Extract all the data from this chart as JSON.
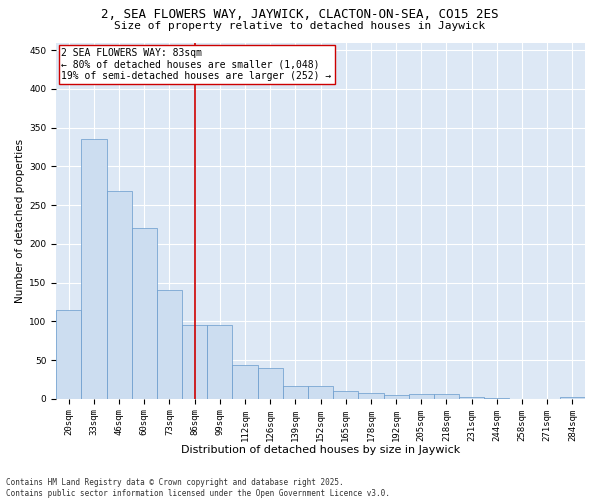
{
  "title": "2, SEA FLOWERS WAY, JAYWICK, CLACTON-ON-SEA, CO15 2ES",
  "subtitle": "Size of property relative to detached houses in Jaywick",
  "xlabel": "Distribution of detached houses by size in Jaywick",
  "ylabel": "Number of detached properties",
  "categories": [
    "20sqm",
    "33sqm",
    "46sqm",
    "60sqm",
    "73sqm",
    "86sqm",
    "99sqm",
    "112sqm",
    "126sqm",
    "139sqm",
    "152sqm",
    "165sqm",
    "178sqm",
    "192sqm",
    "205sqm",
    "218sqm",
    "231sqm",
    "244sqm",
    "258sqm",
    "271sqm",
    "284sqm"
  ],
  "values": [
    115,
    335,
    268,
    221,
    140,
    95,
    95,
    44,
    40,
    17,
    17,
    10,
    7,
    5,
    6,
    6,
    3,
    1,
    0,
    0,
    3
  ],
  "bar_color": "#ccddf0",
  "bar_edge_color": "#6699cc",
  "vline_x": 5.0,
  "vline_color": "#cc0000",
  "annotation_text": "2 SEA FLOWERS WAY: 83sqm\n← 80% of detached houses are smaller (1,048)\n19% of semi-detached houses are larger (252) →",
  "annotation_box_color": "#ffffff",
  "annotation_box_edge": "#cc0000",
  "ylim": [
    0,
    460
  ],
  "yticks": [
    0,
    50,
    100,
    150,
    200,
    250,
    300,
    350,
    400,
    450
  ],
  "bg_color": "#dde8f5",
  "footer": "Contains HM Land Registry data © Crown copyright and database right 2025.\nContains public sector information licensed under the Open Government Licence v3.0.",
  "title_fontsize": 9,
  "subtitle_fontsize": 8,
  "xlabel_fontsize": 8,
  "ylabel_fontsize": 7.5,
  "tick_fontsize": 6.5,
  "annotation_fontsize": 7,
  "footer_fontsize": 5.5
}
